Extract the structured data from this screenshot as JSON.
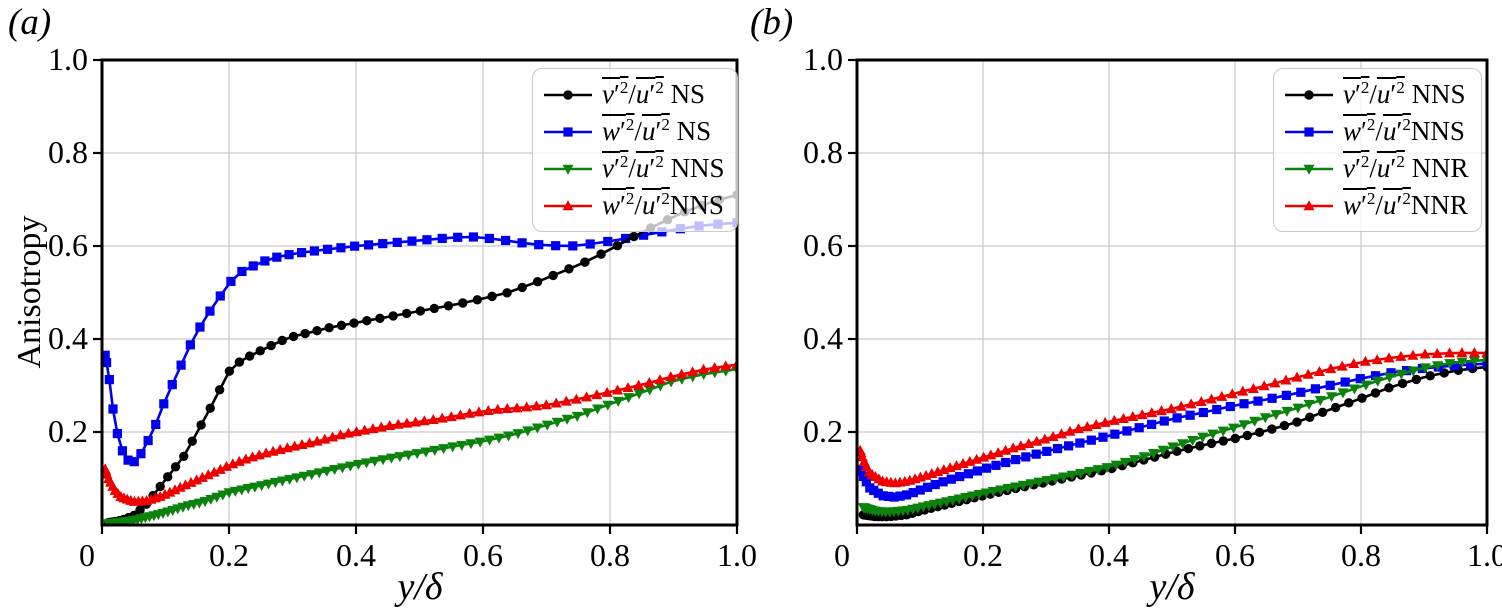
{
  "figure": {
    "background": "#ffffff",
    "grid_color": "#c9c9c9",
    "axis_color": "#000000"
  },
  "chart_data": [
    {
      "id": "a",
      "type": "line",
      "panel_tag": "(a)",
      "xlabel": "y/δ",
      "ylabel": "Anisotropy",
      "xlim": [
        0,
        1
      ],
      "ylim": [
        0,
        1
      ],
      "x_ticks": [
        "0",
        "0.2",
        "0.4",
        "0.6",
        "0.8",
        "1.0"
      ],
      "y_ticks": [
        "0.2",
        "0.4",
        "0.6",
        "0.8",
        "1.0"
      ],
      "grid": true,
      "legend_position": "upper right",
      "legend_entries": [
        {
          "key": "v2u2-ns",
          "marker": "circle",
          "color": "#000000",
          "num": "v",
          "den": "u",
          "prime": "′",
          "sup": "2",
          "suffix": " NS"
        },
        {
          "key": "w2u2-ns",
          "marker": "square",
          "color": "#0000ee",
          "num": "w",
          "den": "u",
          "prime": "′",
          "sup": "2",
          "suffix": " NS"
        },
        {
          "key": "v2u2-nns",
          "marker": "triangle-down",
          "color": "#0b820b",
          "num": "v",
          "den": "u",
          "prime": "′",
          "sup": "2",
          "suffix": " NNS"
        },
        {
          "key": "w2u2-nns",
          "marker": "triangle-up",
          "color": "#ee0000",
          "num": "w",
          "den": "u",
          "prime": "′",
          "sup": "2",
          "suffix": "NNS"
        }
      ],
      "series": [
        {
          "key": "v2u2-ns",
          "name": "v'2/u'2 NS",
          "color": "#000000",
          "marker": "circle",
          "zorder": 2,
          "n": 56,
          "x": [
            0.01,
            0.03,
            0.05,
            0.07,
            0.09,
            0.11,
            0.13,
            0.15,
            0.17,
            0.2,
            0.22,
            0.25,
            0.28,
            0.3,
            0.33,
            0.36,
            0.4,
            0.44,
            0.48,
            0.52,
            0.56,
            0.6,
            0.64,
            0.68,
            0.72,
            0.76,
            0.8,
            0.84,
            0.88,
            0.92,
            0.96,
            1.0
          ],
          "y": [
            0.005,
            0.01,
            0.02,
            0.045,
            0.08,
            0.115,
            0.15,
            0.2,
            0.25,
            0.33,
            0.355,
            0.375,
            0.395,
            0.405,
            0.415,
            0.425,
            0.435,
            0.445,
            0.455,
            0.465,
            0.475,
            0.487,
            0.5,
            0.52,
            0.542,
            0.565,
            0.592,
            0.622,
            0.65,
            0.675,
            0.695,
            0.71
          ]
        },
        {
          "key": "w2u2-ns",
          "name": "w'2/u'2 NS",
          "color": "#0000ee",
          "marker": "square",
          "zorder": 1,
          "n": 52,
          "x": [
            0.005,
            0.01,
            0.02,
            0.03,
            0.04,
            0.05,
            0.06,
            0.08,
            0.1,
            0.12,
            0.14,
            0.16,
            0.18,
            0.2,
            0.22,
            0.25,
            0.28,
            0.31,
            0.35,
            0.4,
            0.45,
            0.5,
            0.55,
            0.58,
            0.62,
            0.66,
            0.7,
            0.74,
            0.78,
            0.82,
            0.86,
            0.9,
            0.95,
            1.0
          ],
          "y": [
            0.365,
            0.33,
            0.22,
            0.165,
            0.14,
            0.135,
            0.15,
            0.2,
            0.27,
            0.33,
            0.39,
            0.44,
            0.48,
            0.52,
            0.545,
            0.565,
            0.578,
            0.585,
            0.592,
            0.6,
            0.606,
            0.612,
            0.618,
            0.62,
            0.615,
            0.607,
            0.601,
            0.6,
            0.606,
            0.615,
            0.625,
            0.635,
            0.645,
            0.65
          ]
        },
        {
          "key": "v2u2-nns",
          "name": "v'2/u'2 NNS",
          "color": "#0b820b",
          "marker": "triangle-down",
          "zorder": 3,
          "n": 88,
          "x": [
            0.01,
            0.05,
            0.08,
            0.1,
            0.13,
            0.16,
            0.2,
            0.25,
            0.3,
            0.35,
            0.4,
            0.45,
            0.5,
            0.55,
            0.6,
            0.65,
            0.7,
            0.75,
            0.8,
            0.85,
            0.9,
            0.95,
            1.0
          ],
          "y": [
            0.003,
            0.01,
            0.02,
            0.027,
            0.04,
            0.05,
            0.07,
            0.085,
            0.1,
            0.115,
            0.13,
            0.143,
            0.155,
            0.168,
            0.18,
            0.195,
            0.215,
            0.235,
            0.26,
            0.285,
            0.31,
            0.325,
            0.335
          ]
        },
        {
          "key": "w2u2-nns",
          "name": "w'2/u'2 NNS",
          "color": "#ee0000",
          "marker": "triangle-up",
          "zorder": 4,
          "n": 88,
          "x": [
            0.005,
            0.01,
            0.02,
            0.03,
            0.05,
            0.07,
            0.09,
            0.11,
            0.13,
            0.15,
            0.18,
            0.2,
            0.23,
            0.26,
            0.3,
            0.34,
            0.38,
            0.42,
            0.46,
            0.5,
            0.54,
            0.58,
            0.62,
            0.66,
            0.7,
            0.74,
            0.78,
            0.82,
            0.86,
            0.9,
            0.95,
            1.0
          ],
          "y": [
            0.12,
            0.1,
            0.075,
            0.06,
            0.05,
            0.052,
            0.06,
            0.072,
            0.085,
            0.097,
            0.115,
            0.128,
            0.143,
            0.155,
            0.168,
            0.18,
            0.195,
            0.205,
            0.215,
            0.222,
            0.23,
            0.24,
            0.248,
            0.252,
            0.258,
            0.268,
            0.28,
            0.292,
            0.305,
            0.32,
            0.335,
            0.345
          ]
        }
      ]
    },
    {
      "id": "b",
      "type": "line",
      "panel_tag": "(b)",
      "xlabel": "y/δ",
      "ylabel": "",
      "xlim": [
        0,
        1
      ],
      "ylim": [
        0,
        1
      ],
      "x_ticks": [
        "0",
        "0.2",
        "0.4",
        "0.6",
        "0.8",
        "1.0"
      ],
      "y_ticks": [
        "0.2",
        "0.4",
        "0.6",
        "0.8",
        "1.0"
      ],
      "grid": true,
      "legend_position": "upper right",
      "legend_entries": [
        {
          "key": "v2u2-nns",
          "marker": "circle",
          "color": "#000000",
          "num": "v",
          "den": "u",
          "prime": "′",
          "sup": "2",
          "suffix": " NNS"
        },
        {
          "key": "w2u2-nns",
          "marker": "square",
          "color": "#0000ee",
          "num": "w",
          "den": "u",
          "prime": "′",
          "sup": "2",
          "suffix": "NNS"
        },
        {
          "key": "v2u2-nnr",
          "marker": "triangle-down",
          "color": "#0b820b",
          "num": "v",
          "den": "u",
          "prime": "′",
          "sup": "2",
          "suffix": " NNR"
        },
        {
          "key": "w2u2-nnr",
          "marker": "triangle-up",
          "color": "#ee0000",
          "num": "w",
          "den": "u",
          "prime": "′",
          "sup": "2",
          "suffix": "NNR"
        }
      ],
      "series": [
        {
          "key": "v2u2-nns",
          "name": "v'2/u'2 NNS",
          "color": "#000000",
          "marker": "circle",
          "zorder": 1,
          "n": 68,
          "x": [
            0.01,
            0.03,
            0.05,
            0.08,
            0.1,
            0.13,
            0.16,
            0.2,
            0.25,
            0.3,
            0.35,
            0.4,
            0.45,
            0.5,
            0.55,
            0.6,
            0.65,
            0.7,
            0.75,
            0.8,
            0.85,
            0.9,
            0.95,
            1.0
          ],
          "y": [
            0.022,
            0.018,
            0.018,
            0.022,
            0.03,
            0.04,
            0.05,
            0.063,
            0.078,
            0.092,
            0.106,
            0.12,
            0.138,
            0.156,
            0.172,
            0.186,
            0.203,
            0.222,
            0.248,
            0.272,
            0.298,
            0.318,
            0.332,
            0.34
          ]
        },
        {
          "key": "w2u2-nns",
          "name": "w'2/u'2 NNS",
          "color": "#0000ee",
          "marker": "square",
          "zorder": 2,
          "n": 60,
          "x": [
            0.005,
            0.01,
            0.02,
            0.04,
            0.06,
            0.08,
            0.1,
            0.13,
            0.16,
            0.2,
            0.25,
            0.3,
            0.35,
            0.4,
            0.45,
            0.5,
            0.55,
            0.6,
            0.65,
            0.7,
            0.75,
            0.8,
            0.85,
            0.9,
            0.95,
            1.0
          ],
          "y": [
            0.12,
            0.105,
            0.08,
            0.063,
            0.06,
            0.065,
            0.075,
            0.09,
            0.103,
            0.12,
            0.14,
            0.158,
            0.175,
            0.192,
            0.21,
            0.228,
            0.242,
            0.257,
            0.27,
            0.284,
            0.3,
            0.315,
            0.328,
            0.337,
            0.343,
            0.347
          ]
        },
        {
          "key": "v2u2-nnr",
          "name": "v'2/u'2 NNR",
          "color": "#0b820b",
          "marker": "triangle-down",
          "zorder": 3,
          "n": 78,
          "x": [
            0.01,
            0.03,
            0.05,
            0.08,
            0.1,
            0.13,
            0.16,
            0.2,
            0.25,
            0.3,
            0.35,
            0.4,
            0.45,
            0.5,
            0.55,
            0.6,
            0.65,
            0.7,
            0.75,
            0.8,
            0.85,
            0.9,
            0.95,
            1.0
          ],
          "y": [
            0.038,
            0.03,
            0.028,
            0.032,
            0.038,
            0.047,
            0.056,
            0.068,
            0.082,
            0.096,
            0.11,
            0.125,
            0.145,
            0.168,
            0.19,
            0.21,
            0.232,
            0.252,
            0.275,
            0.298,
            0.32,
            0.338,
            0.35,
            0.355
          ]
        },
        {
          "key": "w2u2-nnr",
          "name": "w'2/u'2 NNR",
          "color": "#ee0000",
          "marker": "triangle-up",
          "zorder": 4,
          "n": 78,
          "x": [
            0.005,
            0.01,
            0.02,
            0.04,
            0.06,
            0.08,
            0.1,
            0.13,
            0.16,
            0.2,
            0.25,
            0.3,
            0.35,
            0.4,
            0.45,
            0.5,
            0.55,
            0.6,
            0.65,
            0.7,
            0.75,
            0.8,
            0.85,
            0.9,
            0.95,
            1.0
          ],
          "y": [
            0.16,
            0.14,
            0.112,
            0.094,
            0.09,
            0.094,
            0.102,
            0.115,
            0.128,
            0.145,
            0.166,
            0.185,
            0.206,
            0.222,
            0.236,
            0.25,
            0.266,
            0.283,
            0.3,
            0.318,
            0.335,
            0.35,
            0.36,
            0.367,
            0.37,
            0.37
          ]
        }
      ]
    }
  ]
}
